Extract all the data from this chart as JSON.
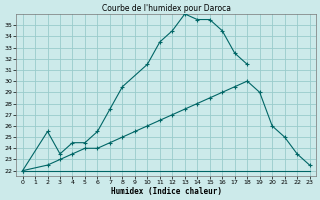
{
  "title": "Courbe de l'humidex pour Daroca",
  "xlabel": "Humidex (Indice chaleur)",
  "bg_color": "#cceaea",
  "grid_color": "#99cccc",
  "line_color": "#006666",
  "xlim": [
    -0.5,
    23.5
  ],
  "ylim": [
    21.5,
    36.0
  ],
  "yticks": [
    22,
    23,
    24,
    25,
    26,
    27,
    28,
    29,
    30,
    31,
    32,
    33,
    34,
    35
  ],
  "xticks": [
    0,
    1,
    2,
    3,
    4,
    5,
    6,
    7,
    8,
    9,
    10,
    11,
    12,
    13,
    14,
    15,
    16,
    17,
    18,
    19,
    20,
    21,
    22,
    23
  ],
  "curve1_x": [
    0,
    2,
    3,
    4,
    5,
    6,
    7,
    8,
    10,
    11,
    12,
    13,
    14,
    15,
    16,
    17,
    18
  ],
  "curve1_y": [
    22,
    25.5,
    23.5,
    24.5,
    24.5,
    25.5,
    27.5,
    29.5,
    31.5,
    33.5,
    34.5,
    36.0,
    35.5,
    35.5,
    34.5,
    32.5,
    31.5
  ],
  "curve2_x": [
    0,
    2,
    3,
    4,
    5,
    6,
    7,
    8,
    9,
    10,
    11,
    12,
    13,
    14,
    15,
    16,
    17,
    18,
    19,
    20,
    21,
    22,
    23
  ],
  "curve2_y": [
    22,
    22.5,
    23.0,
    23.5,
    24.0,
    24.0,
    24.5,
    25.0,
    25.5,
    26.0,
    26.5,
    27.0,
    27.5,
    28.0,
    28.5,
    29.0,
    29.5,
    30.0,
    29.0,
    26.0,
    25.0,
    23.5,
    22.5
  ],
  "curve3_x": [
    0,
    3,
    18,
    19,
    20,
    21,
    22,
    23
  ],
  "curve3_y": [
    22,
    22,
    22,
    22,
    22,
    22,
    22,
    22
  ]
}
